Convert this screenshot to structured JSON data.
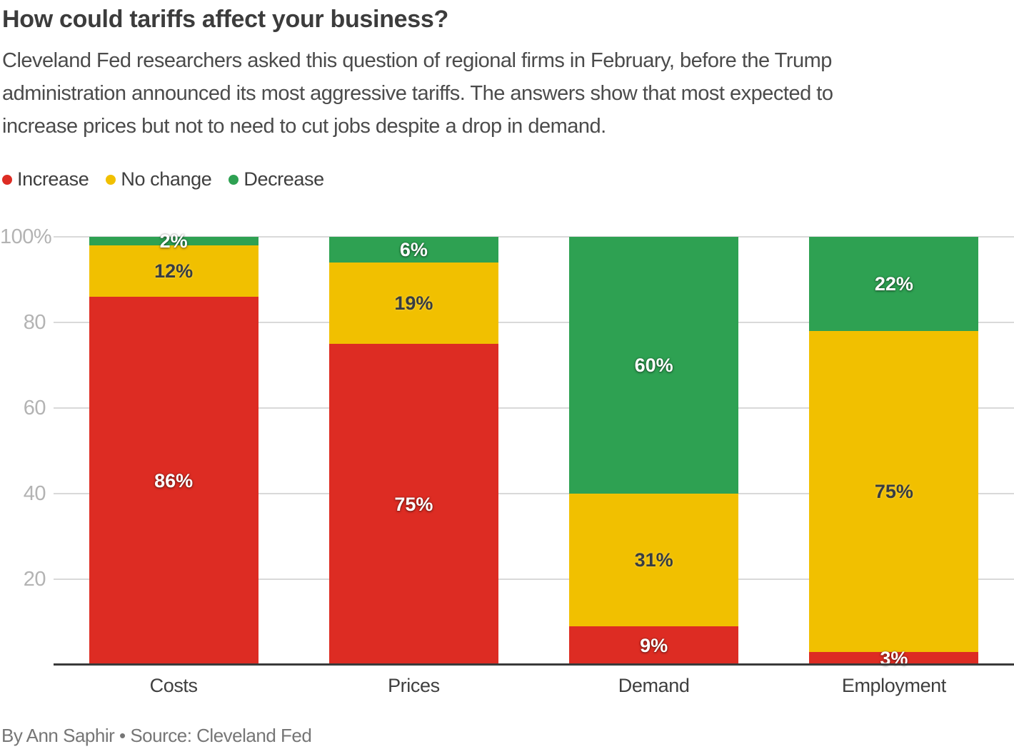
{
  "title": "How could tariffs affect your business?",
  "subtitle_lines": [
    "Cleveland Fed researchers asked this question of regional firms in February, before the Trump",
    "administration announced its most aggressive tariffs. The answers show that most expected to",
    "increase prices but not to need to cut jobs despite a drop in demand."
  ],
  "footer": "By Ann Saphir • Source: Cleveland Fed",
  "colors": {
    "increase": "#dd2c23",
    "no_change": "#f1c000",
    "decrease": "#2ea152",
    "grid": "#d9d9d9",
    "axis": "#3a3a3a",
    "tick_label": "#b3b3b3",
    "title": "#3c3c3c",
    "subtitle": "#4b4b4b",
    "footer": "#767676",
    "background": "#ffffff"
  },
  "chart_data": {
    "type": "bar",
    "stacked": true,
    "grid": true,
    "legend_position": "top-left",
    "unit": "%",
    "categories": [
      "Costs",
      "Prices",
      "Demand",
      "Employment"
    ],
    "series": [
      {
        "name": "Increase",
        "color": "#dd2c23",
        "label_color": "#ffffff",
        "label_style": "light",
        "values": [
          86,
          75,
          9,
          3
        ]
      },
      {
        "name": "No change",
        "color": "#f1c000",
        "label_color": "#373c42",
        "label_style": "dark",
        "values": [
          12,
          19,
          31,
          75
        ]
      },
      {
        "name": "Decrease",
        "color": "#2ea152",
        "label_color": "#ffffff",
        "label_style": "light",
        "values": [
          2,
          6,
          60,
          22
        ]
      }
    ],
    "ylim": [
      0,
      100
    ],
    "y_ticks": [
      {
        "value": 100,
        "label": "100%"
      },
      {
        "value": 80,
        "label": "80"
      },
      {
        "value": 60,
        "label": "60"
      },
      {
        "value": 40,
        "label": "40"
      },
      {
        "value": 20,
        "label": "20"
      }
    ],
    "xlabel": "",
    "ylabel": ""
  }
}
